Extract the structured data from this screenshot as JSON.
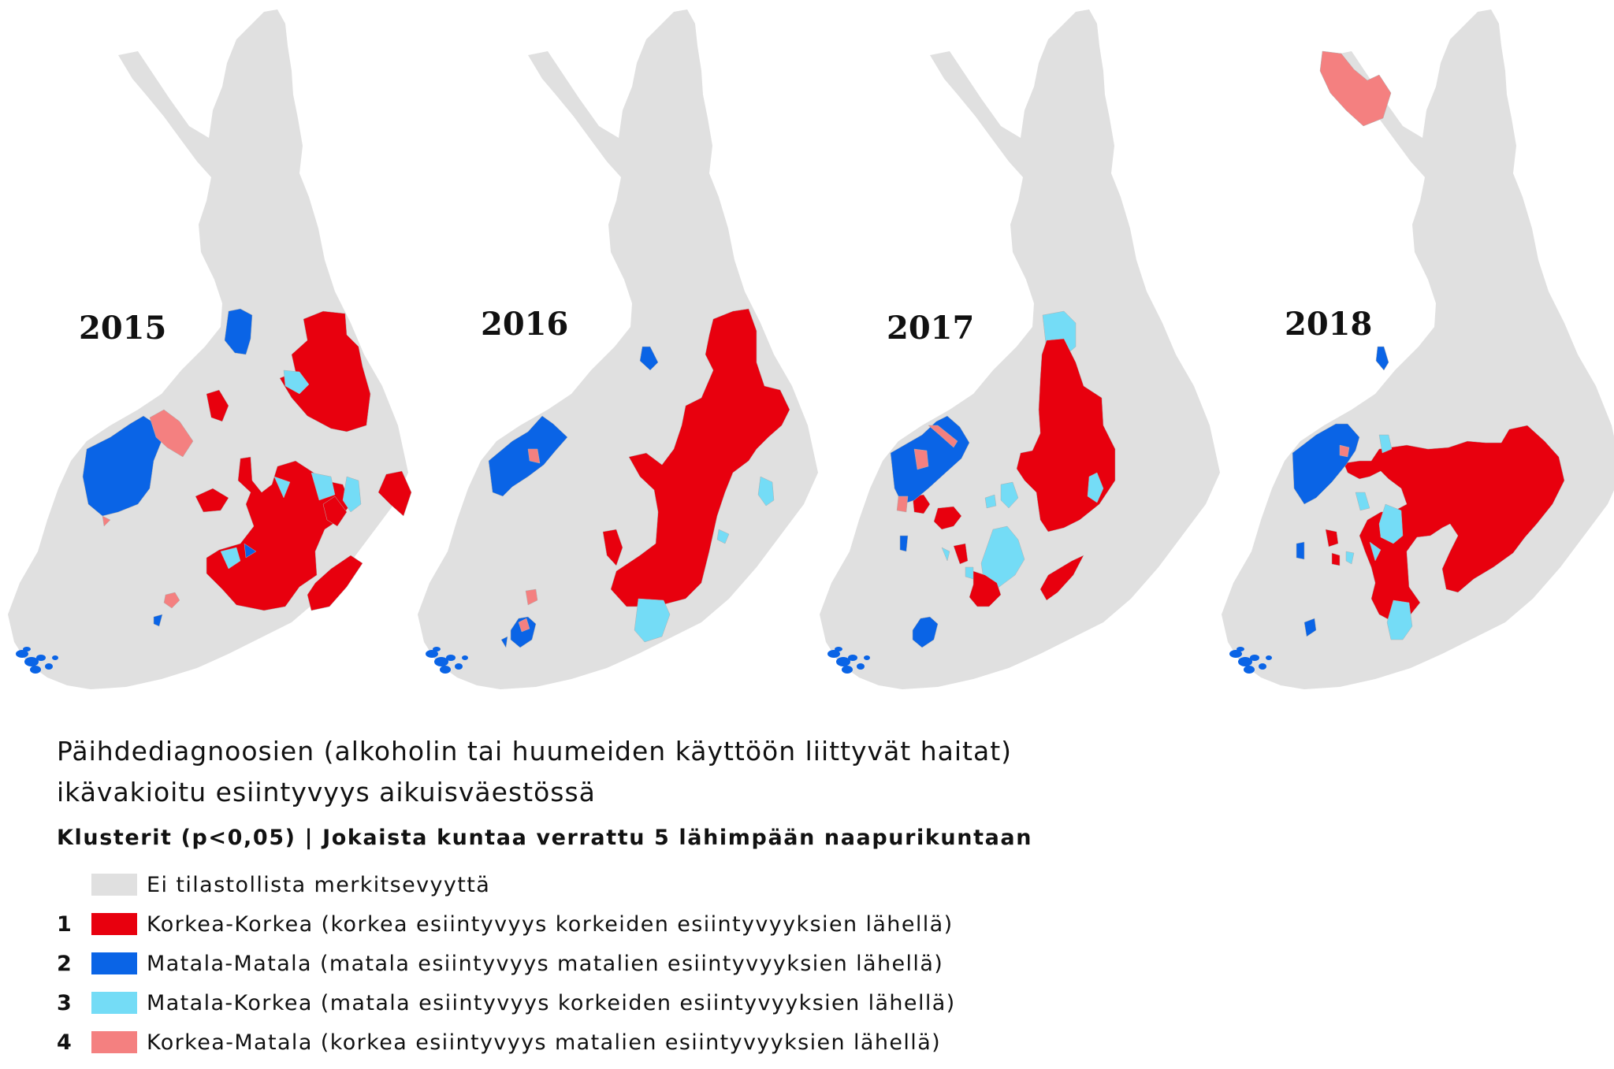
{
  "title_line1": "Päihdediagnoosien (alkoholin tai huumeiden käyttöön liittyvät haitat)",
  "title_line2": "ikävakioitu esiintyvyys aikuisväestössä",
  "subtitle": "Klusterit (p<0,05) | Jokaista kuntaa verrattu 5 lähimpään naapurikuntaan",
  "colors": {
    "none": "#e0e0e0",
    "high_high": "#e8000e",
    "low_low": "#0a64e6",
    "low_high": "#74dcf6",
    "high_low": "#f48080"
  },
  "legend": [
    {
      "num": "",
      "label": "Ei tilastollista merkitsevyyttä",
      "color_key": "none"
    },
    {
      "num": "1",
      "label": "Korkea-Korkea (korkea esiintyvyys korkeiden esiintyvyyksien lähellä)",
      "color_key": "high_high"
    },
    {
      "num": "2",
      "label": "Matala-Matala (matala esiintyvyys matalien esiintyvyyksien lähellä)",
      "color_key": "low_low"
    },
    {
      "num": "3",
      "label": "Matala-Korkea (matala esiintyvyys korkeiden esiintyvyyksien lähellä)",
      "color_key": "low_high"
    },
    {
      "num": "4",
      "label": "Korkea-Matala (korkea esiintyvyys matalien esiintyvyyksien lähellä)",
      "color_key": "high_low"
    }
  ],
  "maps": [
    {
      "year": "2015"
    },
    {
      "year": "2016"
    },
    {
      "year": "2017"
    },
    {
      "year": "2018"
    }
  ]
}
